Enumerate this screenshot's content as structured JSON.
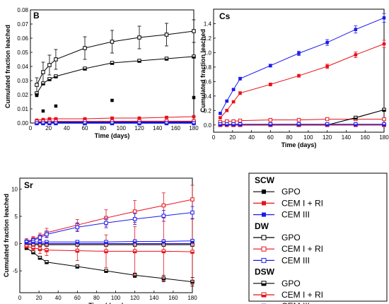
{
  "chart_data": [
    {
      "type": "line",
      "panel_label": "B",
      "xlabel": "Time (days)",
      "ylabel": "Cumulated fraction leached",
      "xlim": [
        0,
        180
      ],
      "ylim": [
        0,
        0.08
      ],
      "xticks": [
        0,
        20,
        40,
        60,
        80,
        100,
        120,
        140,
        160,
        180
      ],
      "yticks": [
        0.0,
        0.01,
        0.02,
        0.03,
        0.04,
        0.05,
        0.06,
        0.07,
        0.08
      ],
      "ytick_labels": [
        "0.00",
        "0.01",
        "0.02",
        "0.03",
        "0.04",
        "0.05",
        "0.06",
        "0.07",
        "0.08"
      ],
      "series": [
        {
          "group": 0,
          "item": 0,
          "x": [
            7,
            14,
            28,
            90,
            180
          ],
          "y": [
            0.0195,
            0.0085,
            0.012,
            0.016,
            0.018
          ],
          "err": [
            0,
            0,
            0,
            0,
            0
          ],
          "connect": false
        },
        {
          "group": 0,
          "item": 1,
          "x": [
            7,
            14,
            21,
            28,
            60,
            90,
            120,
            150,
            180
          ],
          "y": [
            0.002,
            0.0025,
            0.003,
            0.003,
            0.003,
            0.0035,
            0.0035,
            0.004,
            0.0045
          ],
          "err": [
            0.0005,
            0.0005,
            0.0005,
            0.0005,
            0.0005,
            0.0005,
            0.0005,
            0.0005,
            0.0005
          ]
        },
        {
          "group": 0,
          "item": 2,
          "x": [
            7,
            14,
            21,
            28,
            60,
            90,
            120,
            150,
            180
          ],
          "y": [
            0.0008,
            0.0008,
            0.0008,
            0.0008,
            0.0008,
            0.0009,
            0.0009,
            0.0009,
            0.001
          ],
          "err": [
            0.0002,
            0.0002,
            0.0002,
            0.0002,
            0.0002,
            0.0002,
            0.0002,
            0.0002,
            0.0002
          ]
        },
        {
          "group": 1,
          "item": 0,
          "x": [
            7,
            14,
            21,
            28,
            60,
            90,
            120,
            150,
            180
          ],
          "y": [
            0.027,
            0.036,
            0.041,
            0.045,
            0.053,
            0.0575,
            0.0605,
            0.0625,
            0.065
          ],
          "err": [
            0.005,
            0.007,
            0.007,
            0.007,
            0.008,
            0.008,
            0.008,
            0.008,
            0.008
          ]
        },
        {
          "group": 1,
          "item": 1,
          "x": [
            7,
            14,
            21,
            28,
            60,
            90,
            120,
            150,
            180
          ],
          "y": [
            0.0005,
            0.0005,
            0.0005,
            0.0005,
            0.0005,
            0.0005,
            0.0005,
            0.0005,
            0.0005
          ],
          "err": [
            0,
            0,
            0,
            0,
            0,
            0,
            0,
            0,
            0
          ]
        },
        {
          "group": 1,
          "item": 2,
          "x": [
            7,
            14,
            21,
            28,
            60,
            90,
            120,
            150,
            180
          ],
          "y": [
            0.0005,
            0.0005,
            0.0005,
            0.0005,
            0.0005,
            0.0005,
            0.0005,
            0.0005,
            0.0005
          ],
          "err": [
            0,
            0,
            0,
            0,
            0,
            0,
            0,
            0,
            0
          ]
        },
        {
          "group": 2,
          "item": 0,
          "x": [
            7,
            14,
            21,
            28,
            60,
            90,
            120,
            150,
            180
          ],
          "y": [
            0.021,
            0.028,
            0.031,
            0.033,
            0.0385,
            0.0425,
            0.044,
            0.0455,
            0.047
          ],
          "err": [
            0.0005,
            0.0005,
            0.0005,
            0.0005,
            0.0005,
            0.0005,
            0.0005,
            0.0005,
            0.0005
          ]
        },
        {
          "group": 2,
          "item": 1,
          "x": [
            7,
            14,
            21,
            28,
            60,
            90,
            120,
            150,
            180
          ],
          "y": [
            0.001,
            0.001,
            0.001,
            0.0012,
            0.0012,
            0.0012,
            0.0013,
            0.0013,
            0.0013
          ],
          "err": [
            0.0002,
            0.0002,
            0.0002,
            0.0002,
            0.0002,
            0.0002,
            0.0002,
            0.0002,
            0.0002
          ]
        },
        {
          "group": 2,
          "item": 2,
          "x": [
            7,
            14,
            21,
            28,
            60,
            90,
            120,
            150,
            180
          ],
          "y": [
            -0.0002,
            -0.0002,
            -0.0002,
            -0.0002,
            -0.0002,
            -0.0002,
            -0.0002,
            -0.0002,
            -0.0002
          ],
          "err": [
            0,
            0,
            0,
            0,
            0,
            0,
            0,
            0,
            0
          ]
        }
      ]
    },
    {
      "type": "line",
      "panel_label": "Cs",
      "xlabel": "Time (days)",
      "ylabel": "Cumulated fraction leached",
      "xlim": [
        0,
        180
      ],
      "ylim": [
        -0.1,
        1.6
      ],
      "xticks": [
        0,
        20,
        40,
        60,
        80,
        100,
        120,
        140,
        160,
        180
      ],
      "yticks": [
        0.0,
        0.2,
        0.4,
        0.6,
        0.8,
        1.0,
        1.2,
        1.4
      ],
      "ytick_labels": [
        "0.0",
        "0.2",
        "0.4",
        "0.6",
        "0.8",
        "1.0",
        "1.2",
        "1.4"
      ],
      "series": [
        {
          "group": 0,
          "item": 0,
          "x": [
            7,
            14,
            21,
            28,
            60,
            90,
            120,
            150,
            180
          ],
          "y": [
            0,
            0,
            0,
            0,
            0,
            0,
            0,
            0.1,
            0.21
          ],
          "err": [
            0,
            0,
            0,
            0,
            0,
            0,
            0,
            0,
            0
          ]
        },
        {
          "group": 0,
          "item": 1,
          "x": [
            7,
            14,
            21,
            28,
            60,
            90,
            120,
            150,
            180
          ],
          "y": [
            0.1,
            0.2,
            0.32,
            0.44,
            0.56,
            0.68,
            0.81,
            0.97,
            1.12
          ],
          "err": [
            0.01,
            0.01,
            0.01,
            0.02,
            0.02,
            0.02,
            0.03,
            0.04,
            0.05
          ]
        },
        {
          "group": 0,
          "item": 2,
          "x": [
            7,
            14,
            21,
            28,
            60,
            90,
            120,
            150,
            180
          ],
          "y": [
            0.16,
            0.33,
            0.49,
            0.64,
            0.82,
            0.99,
            1.14,
            1.32,
            1.48
          ],
          "err": [
            0.01,
            0.01,
            0.01,
            0.02,
            0.02,
            0.03,
            0.04,
            0.05,
            0.06
          ]
        },
        {
          "group": 1,
          "item": 0,
          "x": [
            7,
            14,
            21,
            28,
            60,
            90,
            120,
            150,
            180
          ],
          "y": [
            0,
            0,
            0,
            0,
            0,
            0,
            0,
            0,
            0
          ],
          "err": [
            0,
            0,
            0,
            0,
            0,
            0,
            0,
            0,
            0
          ]
        },
        {
          "group": 1,
          "item": 1,
          "x": [
            7,
            14,
            21,
            28,
            60,
            90,
            120,
            150,
            180
          ],
          "y": [
            0.04,
            0.05,
            0.05,
            0.06,
            0.07,
            0.07,
            0.08,
            0.08,
            0.08
          ],
          "err": [
            0.005,
            0.005,
            0.005,
            0.005,
            0.005,
            0.005,
            0.005,
            0.005,
            0.005
          ]
        },
        {
          "group": 1,
          "item": 2,
          "x": [
            7,
            14,
            21,
            28,
            60,
            90,
            120,
            150,
            180
          ],
          "y": [
            0,
            0,
            0,
            0,
            0,
            0,
            0,
            0,
            0
          ],
          "err": [
            0,
            0,
            0,
            0,
            0,
            0,
            0,
            0,
            0
          ]
        },
        {
          "group": 2,
          "item": 0,
          "x": [
            7,
            14,
            21,
            28,
            60,
            90,
            120,
            150,
            180
          ],
          "y": [
            0,
            0,
            0,
            0,
            0,
            0,
            0,
            0.1,
            0.21
          ],
          "err": [
            0,
            0,
            0,
            0,
            0,
            0,
            0,
            0,
            0
          ]
        },
        {
          "group": 2,
          "item": 1,
          "x": [
            7,
            14,
            21,
            28,
            60,
            90,
            120,
            150,
            180
          ],
          "y": [
            0,
            0,
            0,
            0,
            0,
            0,
            0,
            0,
            0
          ],
          "err": [
            0,
            0,
            0,
            0,
            0,
            0,
            0,
            0,
            0
          ]
        },
        {
          "group": 2,
          "item": 2,
          "x": [
            7,
            14,
            21,
            28,
            60,
            90,
            120,
            150,
            180
          ],
          "y": [
            0.01,
            0.01,
            0.01,
            0.01,
            0.01,
            0.01,
            0.01,
            0.01,
            0.01
          ],
          "err": [
            0,
            0,
            0,
            0,
            0,
            0,
            0,
            0,
            0
          ]
        }
      ]
    },
    {
      "type": "line",
      "panel_label": "Sr",
      "xlabel": "Time (days)",
      "ylabel": "Cumulated fraction leached",
      "xlim": [
        0,
        180
      ],
      "ylim": [
        -9,
        12
      ],
      "xticks": [
        0,
        20,
        40,
        60,
        80,
        100,
        120,
        140,
        160,
        180
      ],
      "yticks": [
        -5,
        0,
        5,
        10
      ],
      "ytick_labels": [
        "-5",
        "0",
        "5",
        "10"
      ],
      "series": [
        {
          "group": 0,
          "item": 0,
          "x": [
            7,
            14,
            21,
            28,
            60,
            90,
            120,
            150,
            180
          ],
          "y": [
            0,
            0,
            0,
            0,
            0,
            0,
            0,
            0,
            0
          ],
          "err": [
            0,
            0,
            0,
            0,
            0,
            0,
            0,
            0,
            0
          ]
        },
        {
          "group": 0,
          "item": 1,
          "x": [
            7,
            14,
            21,
            28,
            60,
            90,
            120,
            150,
            180
          ],
          "y": [
            0,
            0,
            0,
            0,
            0,
            0,
            0,
            0,
            0
          ],
          "err": [
            0,
            0,
            0,
            0,
            0,
            0,
            0,
            0,
            0
          ]
        },
        {
          "group": 0,
          "item": 2,
          "x": [
            7,
            14,
            21,
            28,
            60,
            90,
            120,
            150,
            180
          ],
          "y": [
            0,
            0,
            0,
            0,
            0,
            0,
            0,
            0,
            0
          ],
          "err": [
            0,
            0,
            0,
            0,
            0,
            0,
            0,
            0,
            0
          ]
        },
        {
          "group": 1,
          "item": 0,
          "x": [
            7,
            14,
            21,
            28,
            60,
            90,
            120,
            150,
            180
          ],
          "y": [
            -0.2,
            -0.2,
            -0.2,
            -0.2,
            -0.2,
            -0.2,
            -0.2,
            -0.2,
            -0.2
          ],
          "err": [
            0,
            0,
            0,
            0,
            0,
            0,
            0,
            0,
            0
          ]
        },
        {
          "group": 1,
          "item": 1,
          "x": [
            7,
            14,
            21,
            28,
            60,
            90,
            120,
            150,
            180
          ],
          "y": [
            0.4,
            0.8,
            1.3,
            2.0,
            3.4,
            4.7,
            5.9,
            7.0,
            8.1
          ],
          "err": [
            0.5,
            0.5,
            0.6,
            0.8,
            1.0,
            1.5,
            2.0,
            2.3,
            2.6
          ]
        },
        {
          "group": 1,
          "item": 2,
          "x": [
            7,
            14,
            21,
            28,
            60,
            90,
            120,
            150,
            180
          ],
          "y": [
            0.3,
            0.6,
            1.1,
            1.7,
            3.0,
            3.8,
            4.5,
            5.1,
            5.7
          ],
          "err": [
            0.4,
            0.4,
            0.5,
            0.6,
            0.8,
            0.9,
            1.0,
            1.0,
            1.1
          ]
        },
        {
          "group": 2,
          "item": 0,
          "x": [
            7,
            14,
            21,
            28,
            60,
            90,
            120,
            150,
            180
          ],
          "y": [
            -0.8,
            -1.6,
            -2.6,
            -3.4,
            -4.2,
            -5.0,
            -5.8,
            -6.4,
            -7.0
          ],
          "err": [
            0.1,
            0.1,
            0.2,
            0.2,
            0.3,
            0.3,
            0.4,
            0.6,
            0.8
          ]
        },
        {
          "group": 2,
          "item": 1,
          "x": [
            7,
            14,
            21,
            28,
            60,
            90,
            120,
            150,
            180
          ],
          "y": [
            -0.5,
            -0.8,
            -1.0,
            -1.2,
            -1.3,
            -1.4,
            -1.4,
            -1.4,
            -1.5
          ],
          "err": [
            0.3,
            0.5,
            0.8,
            1.0,
            1.8,
            3.0,
            4.5,
            5.5,
            6.0
          ]
        },
        {
          "group": 2,
          "item": 2,
          "x": [
            7,
            14,
            21,
            28,
            60,
            90,
            120,
            150,
            180
          ],
          "y": [
            0.3,
            0.3,
            0.3,
            0.3,
            0.3,
            0.3,
            0.4,
            0.4,
            0.5
          ],
          "err": [
            0.3,
            0.3,
            0.3,
            0.3,
            0.3,
            0.3,
            0.3,
            0.3,
            0.3
          ]
        }
      ]
    }
  ],
  "legend": {
    "placement": "bottom-right",
    "groups": [
      {
        "name": "SCW",
        "marker": "square-filled",
        "items": [
          {
            "label": "GPO",
            "color": "#000000"
          },
          {
            "label": "CEM I + RI",
            "color": "#e8101a"
          },
          {
            "label": "CEM III",
            "color": "#1a1aee"
          }
        ]
      },
      {
        "name": "DW",
        "marker": "square-open",
        "items": [
          {
            "label": "GPO",
            "color": "#000000"
          },
          {
            "label": "CEM I + RI",
            "color": "#e8101a"
          },
          {
            "label": "CEM III",
            "color": "#1a1aee"
          }
        ]
      },
      {
        "name": "DSW",
        "marker": "square-half",
        "items": [
          {
            "label": "GPO",
            "color": "#000000"
          },
          {
            "label": "CEM I + RI",
            "color": "#e8101a"
          },
          {
            "label": "CEM III",
            "color": "#1a1aee"
          }
        ]
      }
    ]
  }
}
